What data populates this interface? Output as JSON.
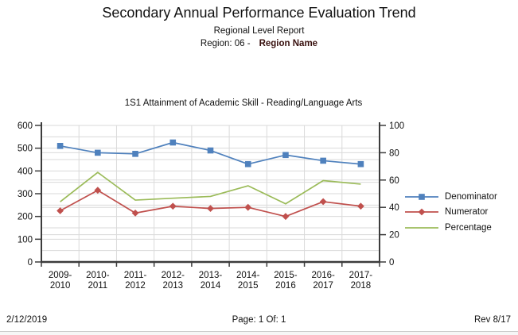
{
  "header": {
    "title": "Secondary Annual Performance Evaluation Trend",
    "subtitle": "Regional Level Report",
    "region_label": "Region: 06 -",
    "region_name": "Region Name"
  },
  "chart_data": {
    "type": "line",
    "title": "1S1 Attainment of Academic Skill - Reading/Language Arts",
    "categories": [
      "2009-2010",
      "2010-2011",
      "2011-2012",
      "2012-2013",
      "2013-2014",
      "2014-2015",
      "2015-2016",
      "2016-2017",
      "2017-2018"
    ],
    "series": [
      {
        "name": "Denominator",
        "axis": "left",
        "color": "#4F81BD",
        "marker": "square",
        "values": [
          510,
          480,
          475,
          525,
          490,
          430,
          470,
          445,
          430
        ]
      },
      {
        "name": "Numerator",
        "axis": "left",
        "color": "#C0504D",
        "marker": "diamond",
        "values": [
          225,
          315,
          215,
          245,
          235,
          240,
          200,
          265,
          245
        ]
      },
      {
        "name": "Percentage",
        "axis": "right",
        "color": "#9BBB59",
        "marker": "none",
        "values": [
          44.1,
          65.6,
          45.3,
          46.7,
          48.0,
          55.8,
          42.6,
          59.6,
          57.0
        ]
      }
    ],
    "left_axis": {
      "min": 0,
      "max": 600,
      "ticks": [
        0,
        100,
        200,
        300,
        400,
        500,
        600
      ],
      "grid_step": 50
    },
    "right_axis": {
      "min": 0,
      "max": 100,
      "ticks": [
        0,
        20,
        40,
        60,
        80,
        100
      ],
      "grid_step": 20
    },
    "grid": true,
    "legend_position": "right",
    "grid_color": "#dadada",
    "axis_color": "#3c3c3c",
    "text_color": "#111111"
  },
  "footer": {
    "date": "2/12/2019",
    "page": "Page: 1 Of: 1",
    "rev": "Rev 8/17"
  }
}
